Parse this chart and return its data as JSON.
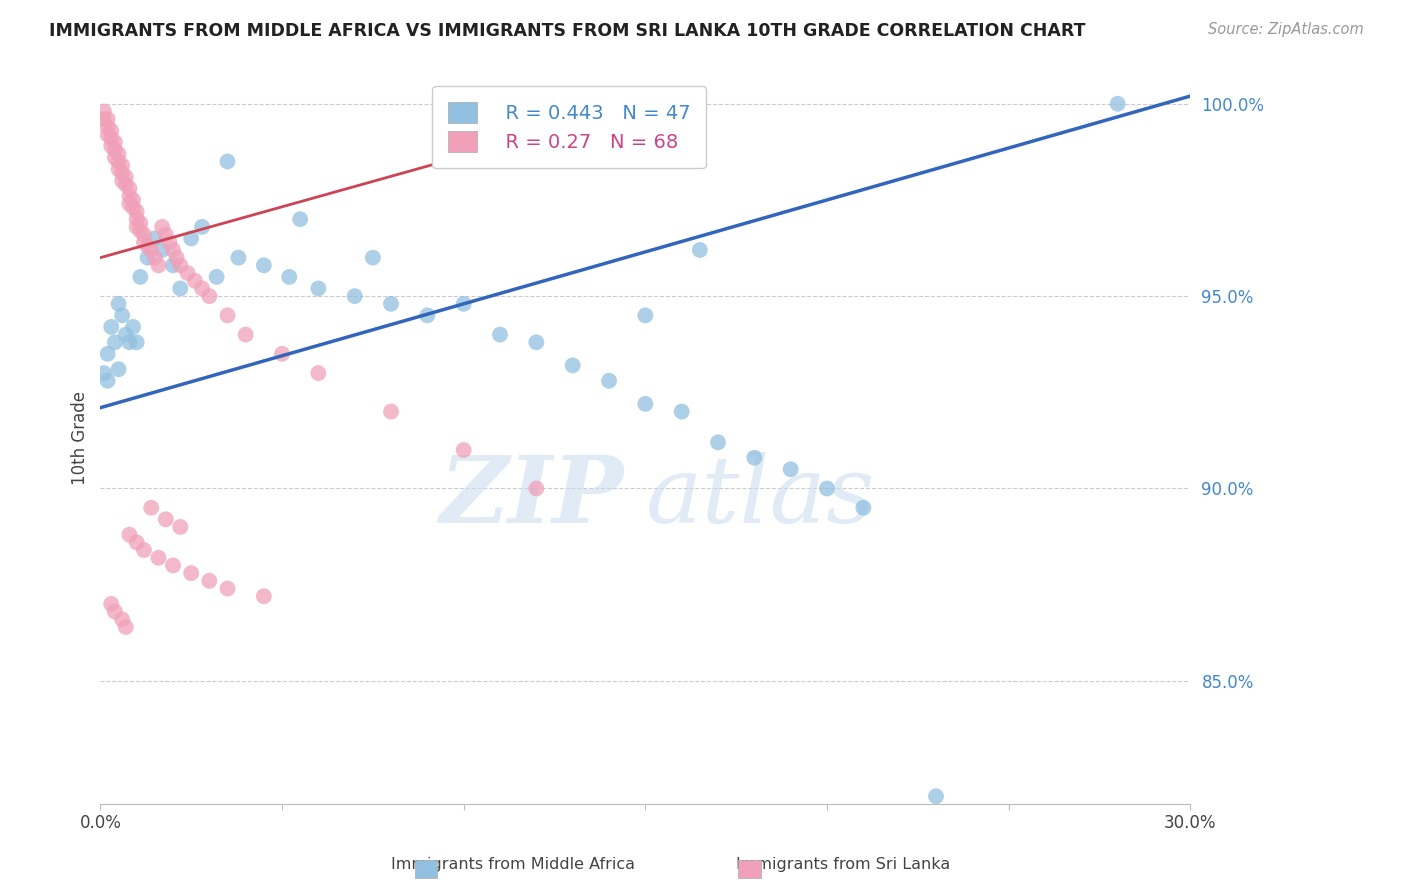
{
  "title": "IMMIGRANTS FROM MIDDLE AFRICA VS IMMIGRANTS FROM SRI LANKA 10TH GRADE CORRELATION CHART",
  "source": "Source: ZipAtlas.com",
  "ylabel": "10th Grade",
  "xmin": 0.0,
  "xmax": 0.3,
  "ymin": 0.818,
  "ymax": 1.008,
  "yticks": [
    0.85,
    0.9,
    0.95,
    1.0
  ],
  "ytick_labels": [
    "85.0%",
    "90.0%",
    "95.0%",
    "100.0%"
  ],
  "xticks": [
    0.0,
    0.05,
    0.1,
    0.15,
    0.2,
    0.25,
    0.3
  ],
  "xtick_labels": [
    "0.0%",
    "",
    "",
    "",
    "",
    "",
    "30.0%"
  ],
  "blue_R": 0.443,
  "blue_N": 47,
  "pink_R": 0.27,
  "pink_N": 68,
  "blue_color": "#92c0e0",
  "pink_color": "#f0a0b8",
  "blue_line_color": "#3366bb",
  "pink_line_color": "#cc4455",
  "legend_blue_text_color": "#4488cc",
  "legend_pink_text_color": "#cc4488",
  "right_axis_color": "#4488cc",
  "watermark_zip": "ZIP",
  "watermark_atlas": "atlas",
  "blue_trend_x": [
    0.0,
    0.3
  ],
  "blue_trend_y": [
    0.921,
    1.002
  ],
  "pink_trend_x": [
    0.0,
    0.14
  ],
  "pink_trend_y": [
    0.96,
    0.997
  ],
  "blue_scatter_x": [
    0.001,
    0.002,
    0.002,
    0.003,
    0.004,
    0.005,
    0.005,
    0.006,
    0.007,
    0.008,
    0.009,
    0.01,
    0.011,
    0.013,
    0.015,
    0.017,
    0.02,
    0.022,
    0.025,
    0.028,
    0.032,
    0.038,
    0.045,
    0.052,
    0.06,
    0.07,
    0.08,
    0.09,
    0.1,
    0.11,
    0.12,
    0.13,
    0.14,
    0.15,
    0.16,
    0.17,
    0.18,
    0.19,
    0.2,
    0.21,
    0.15,
    0.165,
    0.055,
    0.075,
    0.035,
    0.28,
    0.23
  ],
  "blue_scatter_y": [
    0.93,
    0.935,
    0.928,
    0.942,
    0.938,
    0.931,
    0.948,
    0.945,
    0.94,
    0.938,
    0.942,
    0.938,
    0.955,
    0.96,
    0.965,
    0.962,
    0.958,
    0.952,
    0.965,
    0.968,
    0.955,
    0.96,
    0.958,
    0.955,
    0.952,
    0.95,
    0.948,
    0.945,
    0.948,
    0.94,
    0.938,
    0.932,
    0.928,
    0.922,
    0.92,
    0.912,
    0.908,
    0.905,
    0.9,
    0.895,
    0.945,
    0.962,
    0.97,
    0.96,
    0.985,
    1.0,
    0.82
  ],
  "pink_scatter_x": [
    0.001,
    0.001,
    0.002,
    0.002,
    0.002,
    0.003,
    0.003,
    0.003,
    0.004,
    0.004,
    0.004,
    0.005,
    0.005,
    0.005,
    0.006,
    0.006,
    0.006,
    0.007,
    0.007,
    0.008,
    0.008,
    0.008,
    0.009,
    0.009,
    0.01,
    0.01,
    0.01,
    0.011,
    0.011,
    0.012,
    0.012,
    0.013,
    0.014,
    0.015,
    0.016,
    0.017,
    0.018,
    0.019,
    0.02,
    0.021,
    0.022,
    0.024,
    0.026,
    0.028,
    0.03,
    0.035,
    0.04,
    0.05,
    0.06,
    0.08,
    0.1,
    0.12,
    0.014,
    0.018,
    0.022,
    0.008,
    0.01,
    0.012,
    0.016,
    0.02,
    0.025,
    0.03,
    0.035,
    0.045,
    0.003,
    0.004,
    0.006,
    0.007
  ],
  "pink_scatter_y": [
    0.998,
    0.996,
    0.996,
    0.994,
    0.992,
    0.993,
    0.991,
    0.989,
    0.99,
    0.988,
    0.986,
    0.987,
    0.985,
    0.983,
    0.984,
    0.982,
    0.98,
    0.981,
    0.979,
    0.978,
    0.976,
    0.974,
    0.975,
    0.973,
    0.972,
    0.97,
    0.968,
    0.969,
    0.967,
    0.966,
    0.964,
    0.963,
    0.962,
    0.96,
    0.958,
    0.968,
    0.966,
    0.964,
    0.962,
    0.96,
    0.958,
    0.956,
    0.954,
    0.952,
    0.95,
    0.945,
    0.94,
    0.935,
    0.93,
    0.92,
    0.91,
    0.9,
    0.895,
    0.892,
    0.89,
    0.888,
    0.886,
    0.884,
    0.882,
    0.88,
    0.878,
    0.876,
    0.874,
    0.872,
    0.87,
    0.868,
    0.866,
    0.864
  ]
}
